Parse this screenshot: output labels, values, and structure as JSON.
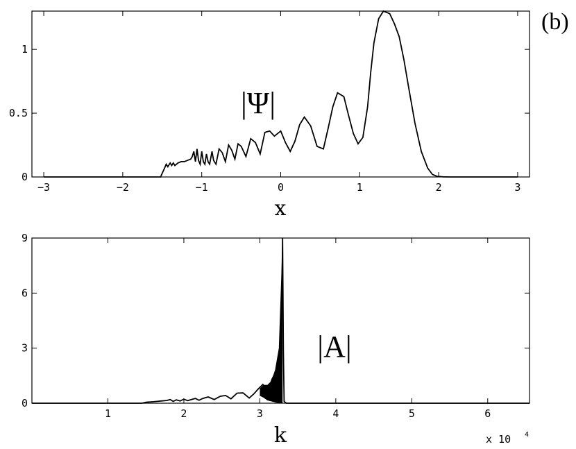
{
  "panel_label": "(b)",
  "chart_data": [
    {
      "type": "line",
      "xlabel": "x",
      "ylabel": "",
      "annotation": "|Ψ|",
      "xlim": [
        -3.15,
        3.15
      ],
      "ylim": [
        0,
        1.3
      ],
      "xticks": [
        -3,
        -2,
        -1,
        0,
        1,
        2,
        3
      ],
      "xtick_labels": [
        "−3",
        "−2",
        "−1",
        "0",
        "1",
        "2",
        "3"
      ],
      "yticks": [
        0,
        0.5,
        1
      ],
      "ytick_labels": [
        "0",
        "0.5",
        "1"
      ],
      "grid": false,
      "series": [
        {
          "x": [
            -3.0,
            -1.6,
            -1.52,
            -1.5,
            -1.47,
            -1.45,
            -1.43,
            -1.4,
            -1.38,
            -1.36,
            -1.34,
            -1.3,
            -1.26,
            -1.22,
            -1.18,
            -1.14,
            -1.12,
            -1.1,
            -1.08,
            -1.06,
            -1.04,
            -1.02,
            -1.0,
            -0.98,
            -0.96,
            -0.94,
            -0.92,
            -0.9,
            -0.87,
            -0.85,
            -0.82,
            -0.78,
            -0.74,
            -0.7,
            -0.66,
            -0.62,
            -0.58,
            -0.54,
            -0.5,
            -0.44,
            -0.38,
            -0.32,
            -0.26,
            -0.2,
            -0.14,
            -0.08,
            0.0,
            0.06,
            0.12,
            0.18,
            0.24,
            0.3,
            0.38,
            0.46,
            0.54,
            0.6,
            0.66,
            0.72,
            0.8,
            0.86,
            0.92,
            0.98,
            1.04,
            1.1,
            1.14,
            1.18,
            1.24,
            1.3,
            1.38,
            1.44,
            1.5,
            1.56,
            1.62,
            1.7,
            1.78,
            1.86,
            1.92,
            1.98,
            2.06,
            2.14,
            2.2,
            2.3,
            3.0
          ],
          "y": [
            0.0,
            0.0,
            0.0,
            0.03,
            0.07,
            0.1,
            0.08,
            0.11,
            0.09,
            0.11,
            0.09,
            0.11,
            0.12,
            0.12,
            0.13,
            0.14,
            0.16,
            0.2,
            0.12,
            0.22,
            0.13,
            0.1,
            0.2,
            0.12,
            0.1,
            0.18,
            0.12,
            0.1,
            0.2,
            0.13,
            0.1,
            0.22,
            0.19,
            0.12,
            0.25,
            0.21,
            0.14,
            0.26,
            0.24,
            0.16,
            0.3,
            0.27,
            0.18,
            0.35,
            0.36,
            0.32,
            0.36,
            0.27,
            0.2,
            0.28,
            0.41,
            0.47,
            0.4,
            0.24,
            0.22,
            0.38,
            0.55,
            0.66,
            0.63,
            0.48,
            0.34,
            0.26,
            0.31,
            0.55,
            0.82,
            1.05,
            1.24,
            1.3,
            1.28,
            1.2,
            1.1,
            0.92,
            0.7,
            0.42,
            0.2,
            0.07,
            0.02,
            0.005,
            0.001,
            0.0,
            0.0,
            0.0,
            0.0
          ]
        }
      ]
    },
    {
      "type": "line",
      "xlabel": "k",
      "ylabel": "",
      "annotation": "|A|",
      "axis_multiplier": "x 10",
      "axis_multiplier_exponent": "4",
      "xlim": [
        0,
        6.55
      ],
      "ylim": [
        0,
        9
      ],
      "xticks": [
        1,
        2,
        3,
        4,
        5,
        6
      ],
      "xtick_labels": [
        "1",
        "2",
        "3",
        "4",
        "5",
        "6"
      ],
      "yticks": [
        0,
        3,
        6,
        9
      ],
      "ytick_labels": [
        "0",
        "3",
        "6",
        "9"
      ],
      "grid": false,
      "series": [
        {
          "x": [
            0.0,
            1.45,
            1.5,
            1.6,
            1.7,
            1.78,
            1.82,
            1.86,
            1.9,
            1.95,
            2.0,
            2.05,
            2.1,
            2.15,
            2.2,
            2.25,
            2.32,
            2.4,
            2.48,
            2.55,
            2.62,
            2.7,
            2.78,
            2.86,
            2.92,
            2.98,
            3.04,
            3.1,
            3.16,
            3.22,
            3.28,
            3.29,
            3.3,
            3.31,
            3.32,
            3.35,
            6.55
          ],
          "y": [
            0.0,
            0.0,
            0.05,
            0.08,
            0.12,
            0.15,
            0.2,
            0.1,
            0.18,
            0.12,
            0.22,
            0.14,
            0.2,
            0.26,
            0.16,
            0.26,
            0.34,
            0.2,
            0.38,
            0.42,
            0.24,
            0.55,
            0.56,
            0.28,
            0.5,
            0.78,
            1.02,
            0.6,
            1.3,
            1.8,
            3.4,
            5.5,
            9.0,
            3.0,
            0.1,
            0.0,
            0.0
          ]
        }
      ],
      "filled_band": {
        "x": [
          3.0,
          3.05,
          3.1,
          3.15,
          3.2,
          3.25,
          3.3
        ],
        "y_low": [
          0.4,
          0.3,
          0.15,
          0.1,
          0.05,
          0.0,
          0.0
        ],
        "y_high": [
          0.8,
          1.0,
          1.0,
          1.2,
          1.8,
          3.0,
          9.0
        ]
      }
    }
  ]
}
